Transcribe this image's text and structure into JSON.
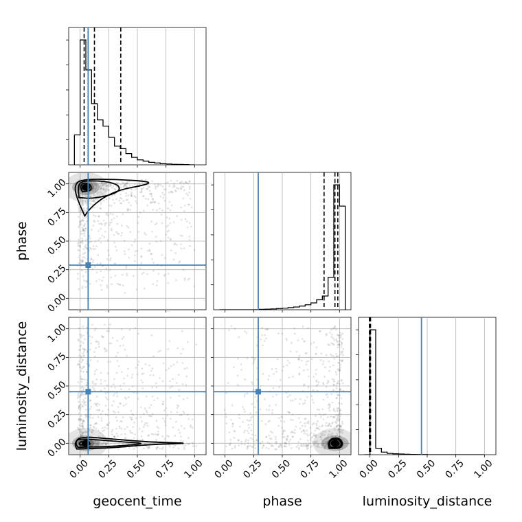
{
  "chart_data": {
    "type": "corner",
    "parameters": [
      "geocent_time",
      "phase",
      "luminosity_distance"
    ],
    "axis_range": [
      -0.1,
      1.1
    ],
    "ticks": [
      0.0,
      0.25,
      0.5,
      0.75,
      1.0
    ],
    "tick_labels": [
      "0.00",
      "0.25",
      "0.50",
      "0.75",
      "1.00"
    ],
    "grid": true,
    "colors": {
      "truth": "#4682b4",
      "hist": "#000000",
      "samples": "#808080"
    },
    "truths": {
      "geocent_time": 0.07,
      "phase": 0.29,
      "luminosity_distance": 0.45
    },
    "marginals": [
      {
        "parameter": "geocent_time",
        "bin_edges": [
          -0.05,
          0.0,
          0.05,
          0.1,
          0.15,
          0.2,
          0.25,
          0.3,
          0.35,
          0.4,
          0.45,
          0.5,
          0.55,
          0.6,
          0.65,
          0.7,
          0.75,
          0.8,
          0.85,
          0.9,
          0.95,
          1.0
        ],
        "counts": [
          0.24,
          1.0,
          0.76,
          0.49,
          0.36,
          0.31,
          0.22,
          0.15,
          0.13,
          0.09,
          0.06,
          0.04,
          0.03,
          0.02,
          0.015,
          0.01,
          0.007,
          0.004,
          0.003,
          0.002,
          0.0
        ],
        "quantiles": [
          0.035,
          0.125,
          0.355
        ]
      },
      {
        "parameter": "phase",
        "bin_edges": [
          -0.05,
          0.0,
          0.05,
          0.1,
          0.15,
          0.2,
          0.25,
          0.3,
          0.35,
          0.4,
          0.45,
          0.5,
          0.55,
          0.6,
          0.65,
          0.7,
          0.75,
          0.8,
          0.85,
          0.9,
          0.95,
          1.0,
          1.05
        ],
        "counts": [
          0.0,
          0.0,
          0.0,
          0.0,
          0.0,
          0.0,
          0.0,
          0.003,
          0.005,
          0.007,
          0.01,
          0.013,
          0.017,
          0.022,
          0.03,
          0.04,
          0.055,
          0.08,
          0.11,
          0.26,
          1.0,
          0.83
        ],
        "quantiles": [
          0.865,
          0.96,
          0.985
        ]
      },
      {
        "parameter": "luminosity_distance",
        "bin_edges": [
          -0.05,
          0.0,
          0.05,
          0.1,
          0.15,
          0.2,
          0.25,
          0.3,
          0.35,
          0.4,
          0.45,
          0.5,
          0.55,
          0.6,
          0.65,
          0.7,
          0.75,
          0.8,
          0.85,
          0.9,
          0.95,
          1.0
        ],
        "counts": [
          0.0,
          0.97,
          0.05,
          0.02,
          0.01,
          0.007,
          0.005,
          0.003,
          0.002,
          0.001,
          0.001,
          0.0,
          0.0,
          0.0,
          0.0,
          0.0,
          0.0,
          0.0,
          0.0,
          0.0,
          0.0
        ],
        "quantiles": [
          -0.005,
          0.0,
          0.005
        ]
      }
    ],
    "pairs": [
      {
        "x": "geocent_time",
        "y": "phase",
        "density_center": [
          0.05,
          0.97
        ],
        "contours": [
          [
            [
              0.02,
              0.93
            ],
            [
              0.09,
              0.94
            ],
            [
              0.1,
              0.97
            ],
            [
              0.08,
              1.0
            ],
            [
              0.03,
              1.01
            ],
            [
              0.0,
              0.98
            ]
          ],
          [
            [
              -0.01,
              0.88
            ],
            [
              0.12,
              0.87
            ],
            [
              0.33,
              0.92
            ],
            [
              0.35,
              0.98
            ],
            [
              0.25,
              1.02
            ],
            [
              0.05,
              1.03
            ],
            [
              -0.02,
              1.0
            ]
          ],
          [
            [
              0.04,
              0.72
            ],
            [
              0.09,
              0.79
            ],
            [
              0.2,
              0.88
            ],
            [
              0.35,
              0.95
            ],
            [
              0.57,
              0.99
            ],
            [
              0.62,
              1.02
            ],
            [
              0.3,
              1.04
            ],
            [
              0.0,
              1.04
            ],
            [
              -0.05,
              0.98
            ],
            [
              -0.03,
              0.88
            ]
          ]
        ]
      },
      {
        "x": "geocent_time",
        "y": "luminosity_distance",
        "density_center": [
          0.05,
          0.0
        ],
        "contours": [
          [
            [
              0.0,
              -0.015
            ],
            [
              0.08,
              -0.015
            ],
            [
              0.09,
              0.0
            ],
            [
              0.06,
              0.015
            ],
            [
              0.01,
              0.015
            ],
            [
              -0.01,
              0.0
            ]
          ],
          [
            [
              -0.02,
              -0.035
            ],
            [
              0.25,
              -0.03
            ],
            [
              0.5,
              -0.01
            ],
            [
              0.55,
              0.0
            ],
            [
              0.4,
              0.01
            ],
            [
              0.15,
              0.03
            ],
            [
              -0.02,
              0.04
            ],
            [
              -0.04,
              0.0
            ]
          ],
          [
            [
              -0.03,
              -0.05
            ],
            [
              0.3,
              -0.04
            ],
            [
              0.6,
              -0.01
            ],
            [
              1.0,
              0.0
            ],
            [
              0.6,
              0.01
            ],
            [
              0.25,
              0.04
            ],
            [
              0.0,
              0.06
            ],
            [
              -0.05,
              0.0
            ]
          ]
        ]
      },
      {
        "x": "phase",
        "y": "luminosity_distance",
        "density_center": [
          0.96,
          0.0
        ],
        "contours": [
          [
            [
              0.94,
              -0.02
            ],
            [
              0.99,
              -0.02
            ],
            [
              1.0,
              0.0
            ],
            [
              0.98,
              0.02
            ],
            [
              0.95,
              0.02
            ],
            [
              0.93,
              0.0
            ]
          ],
          [
            [
              0.92,
              -0.035
            ],
            [
              1.0,
              -0.035
            ],
            [
              1.02,
              0.0
            ],
            [
              0.99,
              0.035
            ],
            [
              0.93,
              0.035
            ],
            [
              0.91,
              0.0
            ]
          ],
          [
            [
              0.91,
              -0.045
            ],
            [
              1.01,
              -0.045
            ],
            [
              1.03,
              0.0
            ],
            [
              1.0,
              0.045
            ],
            [
              0.93,
              0.045
            ],
            [
              0.9,
              0.0
            ]
          ]
        ]
      }
    ]
  }
}
